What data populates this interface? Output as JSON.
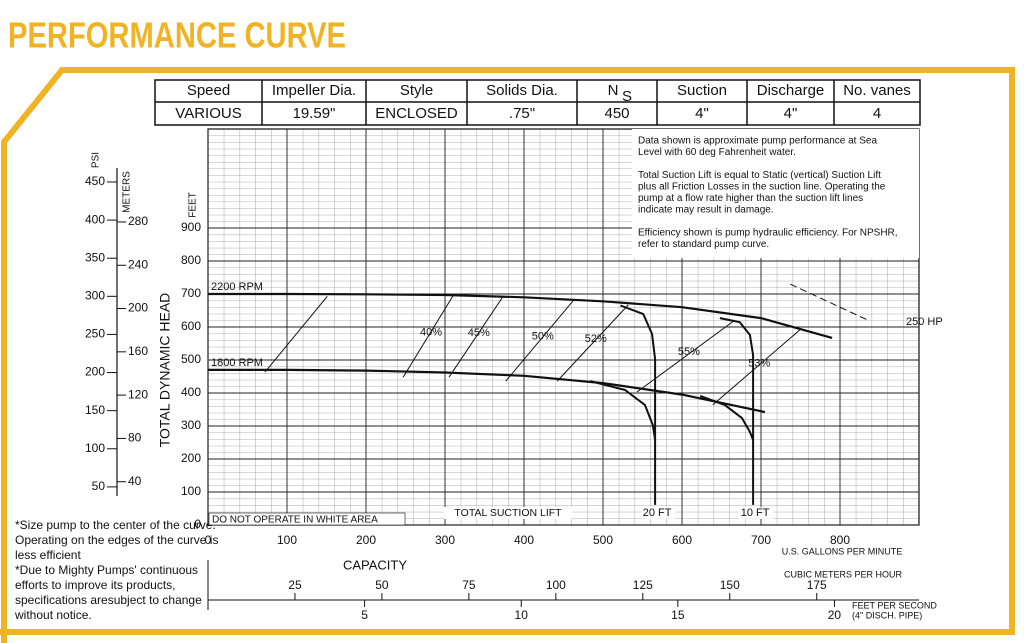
{
  "header": {
    "title": "PERFORMANCE CURVE"
  },
  "table": {
    "columns": [
      "Speed",
      "Impeller Dia.",
      "Style",
      "Solids Dia.",
      {
        "main": "N",
        "sub": "S"
      },
      "Suction",
      "Discharge",
      "No. vanes"
    ],
    "row": [
      "VARIOUS",
      "19.59\"",
      "ENCLOSED",
      ".75\"",
      "450",
      "4\"",
      "4\"",
      "4"
    ]
  },
  "notes_box": [
    [
      "Data shown is approximate pump performance at Sea",
      "Level with 60 deg Fahrenheit water."
    ],
    [
      "Total Suction Lift is equal to Static (vertical) Suction Lift",
      "plus all Friction Losses in the suction line. Operating the",
      "pump at a flow rate higher than the suction lift lines",
      "indicate may result in damage."
    ],
    [
      "Efficiency shown is pump hydraulic efficiency. For NPSHR,",
      "refer to standard pump curve."
    ]
  ],
  "footnotes": [
    [
      "*Size pump to the center of the curve.",
      "Operating on the edges of the curve is",
      "less efficient"
    ],
    [
      "*Due to Mighty Pumps' continuous",
      "efforts to improve its products,",
      "specifications aresubject to change",
      "without notice."
    ]
  ],
  "chart_data": {
    "type": "line",
    "xlabel": "CAPACITY",
    "x_unit_label": "U.S. GALLONS PER MINUTE",
    "ylabel": "TOTAL DYNAMIC HEAD",
    "y_unit_label": "FEET",
    "xlim": [
      0,
      900
    ],
    "xticks": [
      0,
      100,
      200,
      300,
      400,
      500,
      600,
      700,
      800
    ],
    "ylim": [
      0,
      1200
    ],
    "yticks": [
      0,
      100,
      200,
      300,
      400,
      500,
      600,
      700,
      800,
      900
    ],
    "grid": true,
    "psi_label": "PSI",
    "psi_lim": [
      0,
      519.5
    ],
    "psi_ticks": [
      50,
      100,
      150,
      200,
      250,
      300,
      350,
      400,
      450
    ],
    "meters_label": "METERS",
    "meters_lim": [
      0,
      365.9
    ],
    "meters_ticks": [
      40,
      80,
      120,
      160,
      200,
      240,
      280
    ],
    "m3h_label": "CUBIC METERS PER HOUR",
    "m3h_lim": [
      0,
      204.4
    ],
    "m3h_ticks": [
      25,
      50,
      75,
      100,
      125,
      150,
      175
    ],
    "fps_label": [
      "FEET PER SECOND",
      "(4\" DISCH. PIPE)"
    ],
    "fps_lim": [
      0,
      22.7
    ],
    "fps_ticks": [
      5,
      10,
      15,
      20
    ],
    "annotations": {
      "suction": "TOTAL SUCTION LIFT",
      "warning": "DO NOT OPERATE IN WHITE AREA"
    },
    "series": [
      {
        "name": "2200 RPM",
        "color": "#111",
        "width": 2.2,
        "label_at": "start",
        "x": [
          0,
          100,
          200,
          300,
          400,
          500,
          600,
          700,
          790
        ],
        "values": [
          700,
          700,
          699,
          697,
          690,
          678,
          660,
          627,
          567
        ]
      },
      {
        "name": "1800 RPM",
        "color": "#111",
        "width": 2.2,
        "label_at": "start",
        "x": [
          0,
          100,
          200,
          300,
          400,
          500,
          600,
          705
        ],
        "values": [
          470,
          470,
          468,
          462,
          452,
          430,
          395,
          342
        ]
      },
      {
        "color": "#111",
        "width": 1,
        "x": [
          72,
          151
        ],
        "values": [
          463,
          693
        ]
      },
      {
        "name": "40%",
        "color": "#111",
        "width": 1,
        "label_at": "middle",
        "x": [
          247,
          310
        ],
        "values": [
          448,
          694
        ]
      },
      {
        "name": "45%",
        "color": "#111",
        "width": 1,
        "label_at": "middle",
        "x": [
          305,
          373
        ],
        "values": [
          448,
          691
        ]
      },
      {
        "name": "50%",
        "color": "#111",
        "width": 1,
        "label_at": "middle",
        "x": [
          377,
          463
        ],
        "values": [
          436,
          682
        ]
      },
      {
        "name": "52%",
        "color": "#111",
        "width": 1,
        "label_at": "middle",
        "x": [
          442,
          532
        ],
        "values": [
          436,
          667
        ]
      },
      {
        "name": "55%",
        "color": "#111",
        "width": 1,
        "label_at": "middle",
        "x": [
          543,
          667
        ],
        "values": [
          403,
          621
        ]
      },
      {
        "name": "53%",
        "color": "#111",
        "width": 1,
        "label_at": "middle",
        "x": [
          639,
          749
        ],
        "values": [
          364,
          591
        ]
      },
      {
        "name": "250 HP",
        "color": "#111",
        "width": 1,
        "dash": true,
        "label_at": "end",
        "x": [
          737,
          838
        ],
        "values": [
          730,
          618
        ]
      },
      {
        "name": "20 FT",
        "color": "#111",
        "width": 2,
        "label_at": "bottom",
        "x": [
          522,
          551,
          562,
          566,
          566,
          null,
          484,
          528,
          553,
          563,
          566
        ],
        "values": [
          665,
          639,
          579,
          503,
          61,
          null,
          436,
          409,
          364,
          303,
          258
        ]
      },
      {
        "name": "10 FT",
        "color": "#111",
        "width": 2,
        "label_at": "bottom",
        "x": [
          648,
          673,
          686,
          690,
          690,
          null,
          623,
          654,
          676,
          686,
          690
        ],
        "values": [
          627,
          615,
          576,
          515,
          61,
          null,
          391,
          364,
          324,
          282,
          258
        ]
      }
    ]
  }
}
